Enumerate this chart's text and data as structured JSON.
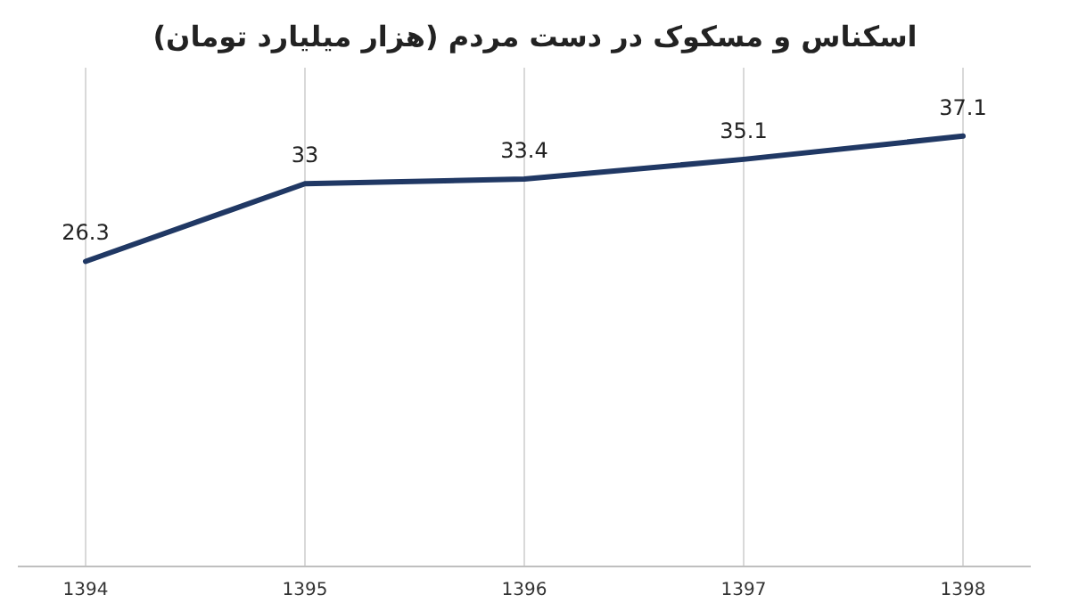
{
  "chart_data": {
    "type": "line",
    "title": "اسکناس و مسکوک در دست مردم (هزار میلیارد تومان)",
    "categories": [
      "1394",
      "1395",
      "1396",
      "1397",
      "1398"
    ],
    "values": [
      26.3,
      33,
      33.4,
      35.1,
      37.1
    ],
    "color": "#203864",
    "ylim": [
      0,
      43
    ],
    "grid": "x",
    "data_labels": true,
    "line_style": "solid"
  }
}
